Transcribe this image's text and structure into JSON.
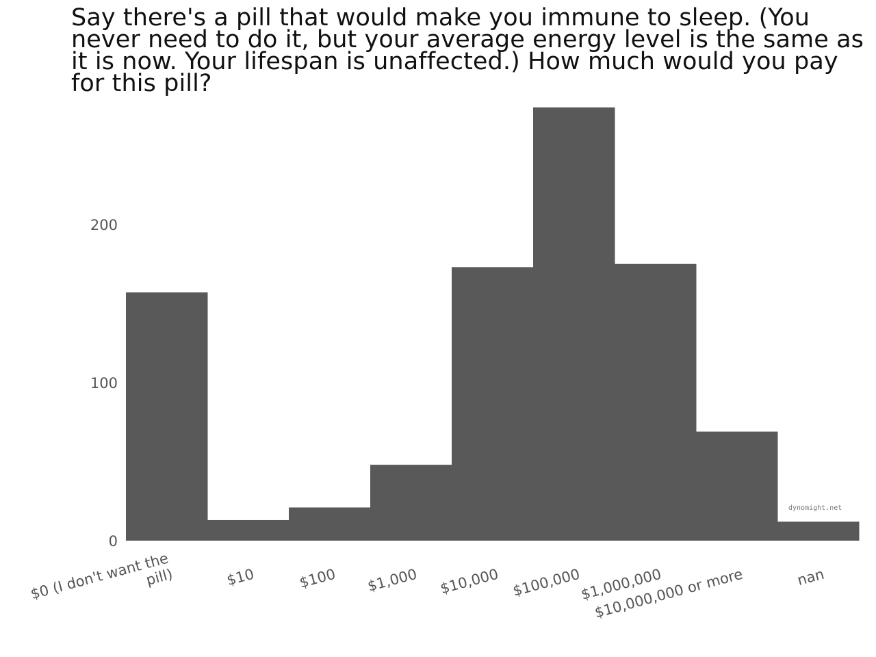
{
  "title": "Say there's a pill that would make you immune to sleep. (You never need to do it, but your average energy level is the same as it is now. Your lifespan is unaffected.) How much would you pay for this pill?",
  "watermark": "dynomight.net",
  "colors": {
    "bar": "#595959",
    "tick_text": "#555555",
    "background": "#ffffff"
  },
  "chart_data": {
    "type": "bar",
    "title": "Say there's a pill that would make you immune to sleep. (You never need to do it, but your average energy level is the same as it is now. Your lifespan is unaffected.) How much would you pay for this pill?",
    "xlabel": "",
    "ylabel": "",
    "grid": false,
    "legend": "none",
    "ylim": [
      0,
      274
    ],
    "yticks": [
      0,
      100,
      200
    ],
    "categories": [
      [
        "$0 (I don't want the",
        "pill)"
      ],
      [
        "$10"
      ],
      [
        "$100"
      ],
      [
        "$1,000"
      ],
      [
        "$10,000"
      ],
      [
        "$100,000"
      ],
      [
        "$1,000,000"
      ],
      [
        "$10,000,000 or more"
      ],
      [
        "nan"
      ]
    ],
    "values": [
      157,
      13,
      21,
      48,
      173,
      274,
      175,
      69,
      12
    ]
  }
}
